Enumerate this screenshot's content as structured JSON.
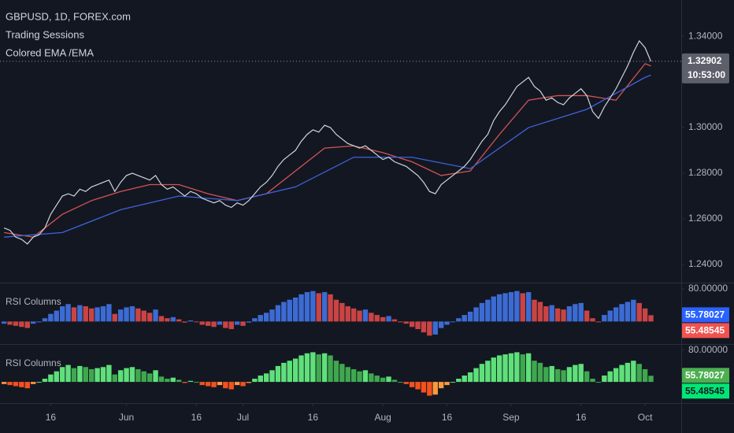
{
  "chart_data": [
    {
      "type": "line",
      "title": "GBPUSD, 1D, FOREX.com",
      "subtitle": "Trading Sessions",
      "indicator": "Colored EMA /EMA",
      "color": "#d1d4dc",
      "values": [
        1.256,
        1.255,
        1.252,
        1.251,
        1.249,
        1.252,
        1.253,
        1.256,
        1.262,
        1.266,
        1.27,
        1.271,
        1.27,
        1.273,
        1.272,
        1.274,
        1.275,
        1.276,
        1.277,
        1.272,
        1.276,
        1.279,
        1.28,
        1.279,
        1.278,
        1.277,
        1.279,
        1.275,
        1.273,
        1.274,
        1.272,
        1.27,
        1.272,
        1.271,
        1.269,
        1.268,
        1.267,
        1.268,
        1.266,
        1.265,
        1.267,
        1.266,
        1.268,
        1.271,
        1.274,
        1.276,
        1.279,
        1.283,
        1.286,
        1.288,
        1.29,
        1.294,
        1.297,
        1.299,
        1.298,
        1.301,
        1.3,
        1.297,
        1.295,
        1.293,
        1.292,
        1.291,
        1.292,
        1.29,
        1.288,
        1.286,
        1.287,
        1.285,
        1.284,
        1.283,
        1.281,
        1.279,
        1.276,
        1.272,
        1.271,
        1.275,
        1.277,
        1.279,
        1.281,
        1.283,
        1.286,
        1.29,
        1.294,
        1.297,
        1.303,
        1.307,
        1.31,
        1.314,
        1.318,
        1.32,
        1.322,
        1.318,
        1.316,
        1.312,
        1.313,
        1.311,
        1.31,
        1.313,
        1.315,
        1.317,
        1.314,
        1.307,
        1.304,
        1.309,
        1.313,
        1.317,
        1.322,
        1.327,
        1.333,
        1.338,
        1.335,
        1.329
      ],
      "series": [
        {
          "color": "#d35454",
          "x": [
            0,
            5,
            10,
            15,
            20,
            25,
            30,
            35,
            40,
            45,
            50,
            55,
            60,
            65,
            70,
            75,
            80,
            85,
            90,
            95,
            100,
            105,
            110,
            111
          ],
          "values": [
            1.254,
            1.252,
            1.262,
            1.268,
            1.272,
            1.275,
            1.275,
            1.271,
            1.268,
            1.271,
            1.281,
            1.291,
            1.292,
            1.289,
            1.285,
            1.279,
            1.281,
            1.297,
            1.312,
            1.314,
            1.314,
            1.312,
            1.328,
            1.327
          ]
        },
        {
          "color": "#3f63d8",
          "x": [
            0,
            10,
            20,
            30,
            40,
            50,
            60,
            70,
            80,
            90,
            100,
            110,
            111
          ],
          "values": [
            1.252,
            1.254,
            1.264,
            1.27,
            1.268,
            1.274,
            1.287,
            1.287,
            1.282,
            1.3,
            1.308,
            1.322,
            1.323
          ]
        }
      ],
      "last_price": 1.32902,
      "countdown": "10:53:00",
      "xlim": [
        -0.7,
        116.2
      ],
      "ylim": [
        1.2324,
        1.3559
      ],
      "yticks": [
        {
          "value": 1.24,
          "label": "1.24000"
        },
        {
          "value": 1.26,
          "label": "1.26000"
        },
        {
          "value": 1.28,
          "label": "1.28000"
        },
        {
          "value": 1.3,
          "label": "1.30000"
        },
        {
          "value": 1.34,
          "label": "1.34000"
        }
      ],
      "xticks": [
        {
          "value": 8,
          "label": "16"
        },
        {
          "value": 21,
          "label": "Jun"
        },
        {
          "value": 33,
          "label": "16"
        },
        {
          "value": 41,
          "label": "Jul"
        },
        {
          "value": 53,
          "label": "16"
        },
        {
          "value": 65,
          "label": "Aug"
        },
        {
          "value": 76,
          "label": "16"
        },
        {
          "value": 87,
          "label": "Sep"
        },
        {
          "value": 99,
          "label": "16"
        },
        {
          "value": 110,
          "label": "Oct"
        }
      ]
    },
    {
      "type": "columns",
      "title": "RSI Columns",
      "baseline": 50,
      "colors": [
        "#3d6bd4",
        "#c94444"
      ],
      "values": [
        48,
        47,
        46,
        45,
        44,
        48,
        50,
        53,
        57,
        60,
        64,
        66,
        63,
        65,
        64,
        62,
        63,
        64,
        66,
        57,
        61,
        63,
        64,
        62,
        60,
        58,
        61,
        55,
        53,
        54,
        52,
        49,
        51,
        50,
        47,
        46,
        45,
        47,
        44,
        43,
        47,
        46,
        49,
        53,
        56,
        58,
        61,
        65,
        68,
        70,
        72,
        75,
        77,
        78,
        76,
        77,
        75,
        70,
        67,
        64,
        62,
        60,
        61,
        58,
        56,
        54,
        55,
        52,
        50,
        48,
        45,
        43,
        40,
        37,
        38,
        44,
        47,
        50,
        53,
        56,
        59,
        63,
        67,
        70,
        73,
        75,
        76,
        77,
        78,
        76,
        77,
        70,
        68,
        64,
        65,
        62,
        61,
        64,
        66,
        67,
        60,
        53,
        50,
        56,
        60,
        63,
        66,
        68,
        70,
        67,
        62,
        55.78
      ],
      "last_value": {
        "value": 55.78027,
        "label": "55.78027"
      },
      "signal_value": {
        "value": 55.48545,
        "label": "55.48545"
      },
      "ylim": [
        30,
        85
      ],
      "yticks": [
        {
          "value": 80,
          "label": "80.00000"
        }
      ]
    },
    {
      "type": "columns-trend",
      "title": "RSI Columns",
      "baseline": 50,
      "colors": [
        "#5fe07a",
        "#3fa84f",
        "#ff9a3c",
        "#f4511e"
      ],
      "ylim": [
        30,
        85
      ],
      "yticks": [
        {
          "value": 80,
          "label": "80.00000"
        }
      ]
    }
  ]
}
